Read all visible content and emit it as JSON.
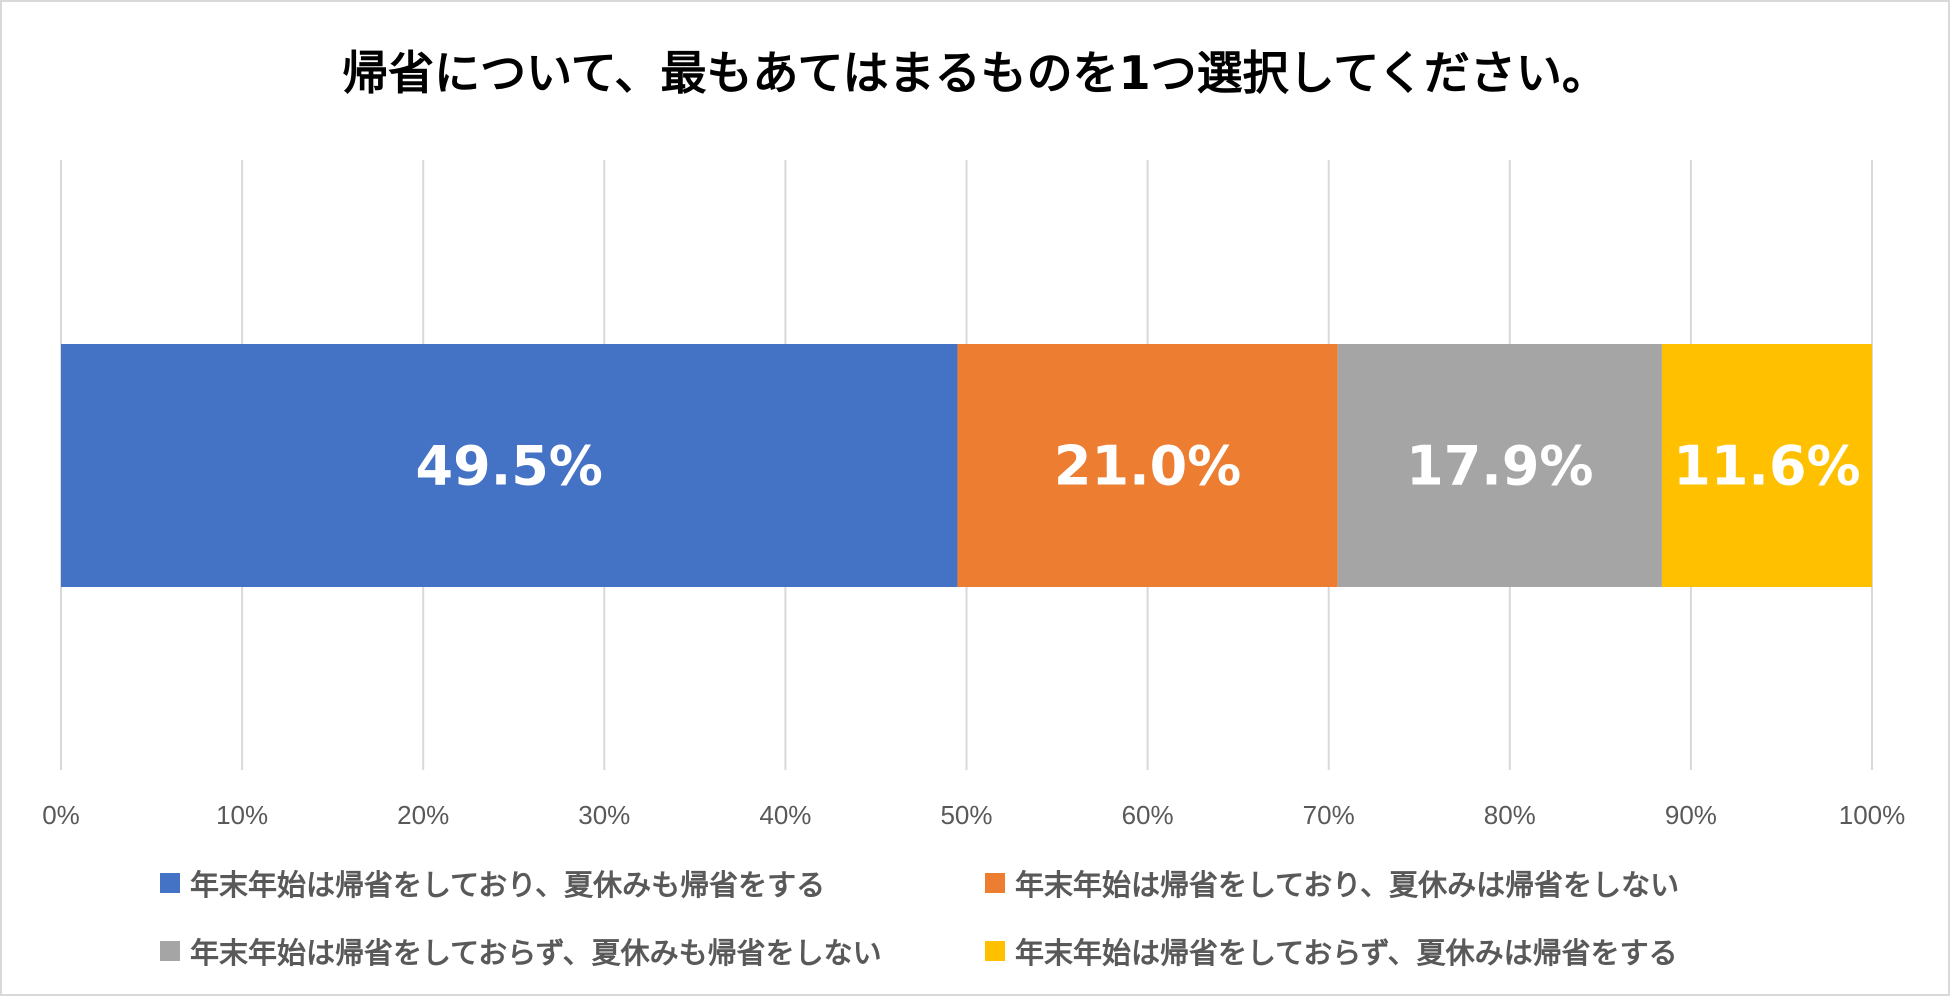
{
  "chart_data": {
    "type": "bar",
    "orientation": "horizontal",
    "stacked": true,
    "title": "帰省について、最もあてはまるものを1つ選択してください。",
    "xlabel": "",
    "ylabel": "",
    "xlim": [
      0,
      100
    ],
    "xticks": [
      "0%",
      "10%",
      "20%",
      "30%",
      "40%",
      "50%",
      "60%",
      "70%",
      "80%",
      "90%",
      "100%"
    ],
    "grid": true,
    "legend_position": "bottom",
    "series": [
      {
        "name": "年末年始は帰省をしており、夏休みも帰省をする",
        "value": 49.5,
        "label": "49.5%",
        "color": "#4472C4"
      },
      {
        "name": "年末年始は帰省をしており、夏休みは帰省をしない",
        "value": 21.0,
        "label": "21.0%",
        "color": "#ED7D31"
      },
      {
        "name": "年末年始は帰省をしておらず、夏休みも帰省をしない",
        "value": 17.9,
        "label": "17.9%",
        "color": "#A5A5A5"
      },
      {
        "name": "年末年始は帰省をしておらず、夏休みは帰省をする",
        "value": 11.6,
        "label": "11.6%",
        "color": "#FFC000"
      }
    ]
  }
}
